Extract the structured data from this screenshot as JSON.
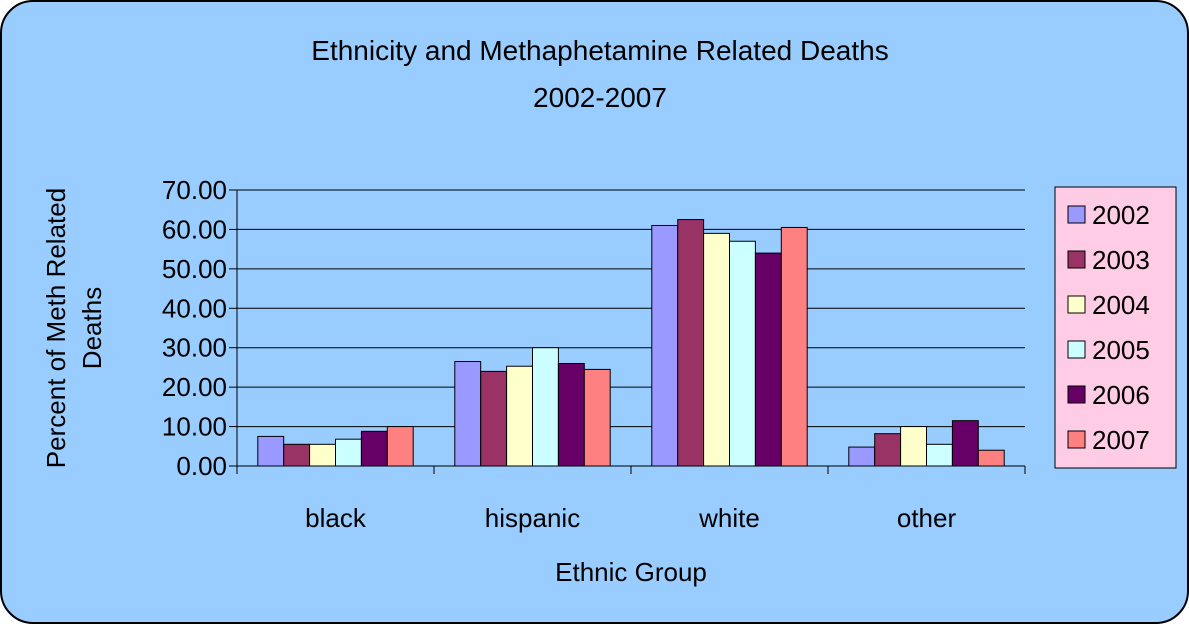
{
  "chart_data": {
    "type": "bar",
    "title_lines": [
      "Ethnicity and Methaphetamine Related Deaths",
      "2002-2007"
    ],
    "xlabel": "Ethnic Group",
    "ylabel_lines": [
      "Percent of Meth Related",
      "Deaths"
    ],
    "categories": [
      "black",
      "hispanic",
      "white",
      "other"
    ],
    "ylim": [
      0,
      70
    ],
    "yticks": [
      "0.00",
      "10.00",
      "20.00",
      "30.00",
      "40.00",
      "50.00",
      "60.00",
      "70.00"
    ],
    "grid": true,
    "legend_position": "right",
    "series": [
      {
        "name": "2002",
        "color": "#9999FF",
        "values": [
          7.5,
          26.5,
          61.0,
          4.8
        ]
      },
      {
        "name": "2003",
        "color": "#993366",
        "values": [
          5.5,
          24.0,
          62.5,
          8.2
        ]
      },
      {
        "name": "2004",
        "color": "#FFFFCC",
        "values": [
          5.5,
          25.3,
          59.0,
          10.0
        ]
      },
      {
        "name": "2005",
        "color": "#CCFFFF",
        "values": [
          6.8,
          30.0,
          57.0,
          5.5
        ]
      },
      {
        "name": "2006",
        "color": "#660066",
        "values": [
          8.8,
          26.0,
          54.0,
          11.5
        ]
      },
      {
        "name": "2007",
        "color": "#FF8080",
        "values": [
          10.0,
          24.5,
          60.5,
          4.0
        ]
      }
    ]
  },
  "style": {
    "background": "#99CCFF",
    "legend_background": "#FFCCE5",
    "gridline_color": "#000000"
  }
}
